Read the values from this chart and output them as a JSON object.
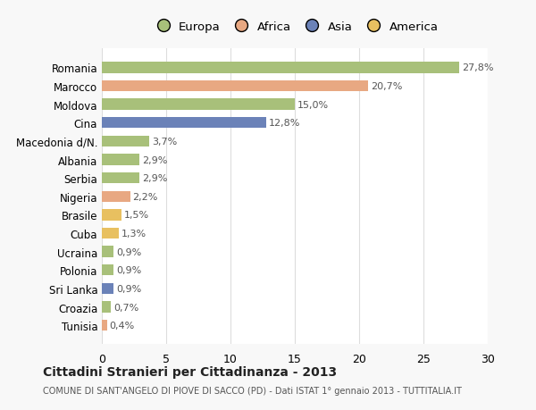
{
  "categories": [
    "Romania",
    "Marocco",
    "Moldova",
    "Cina",
    "Macedonia d/N.",
    "Albania",
    "Serbia",
    "Nigeria",
    "Brasile",
    "Cuba",
    "Ucraina",
    "Polonia",
    "Sri Lanka",
    "Croazia",
    "Tunisia"
  ],
  "values": [
    27.8,
    20.7,
    15.0,
    12.8,
    3.7,
    2.9,
    2.9,
    2.2,
    1.5,
    1.3,
    0.9,
    0.9,
    0.9,
    0.7,
    0.4
  ],
  "labels": [
    "27,8%",
    "20,7%",
    "15,0%",
    "12,8%",
    "3,7%",
    "2,9%",
    "2,9%",
    "2,2%",
    "1,5%",
    "1,3%",
    "0,9%",
    "0,9%",
    "0,9%",
    "0,7%",
    "0,4%"
  ],
  "colors": [
    "#a8c07a",
    "#e8a882",
    "#a8c07a",
    "#6b82b8",
    "#a8c07a",
    "#a8c07a",
    "#a8c07a",
    "#e8a882",
    "#e8c060",
    "#e8c060",
    "#a8c07a",
    "#a8c07a",
    "#6b82b8",
    "#a8c07a",
    "#e8a882"
  ],
  "legend_labels": [
    "Europa",
    "Africa",
    "Asia",
    "America"
  ],
  "legend_colors": [
    "#a8c07a",
    "#e8a882",
    "#6b82b8",
    "#e8c060"
  ],
  "title": "Cittadini Stranieri per Cittadinanza - 2013",
  "subtitle": "COMUNE DI SANT'ANGELO DI PIOVE DI SACCO (PD) - Dati ISTAT 1° gennaio 2013 - TUTTITALIA.IT",
  "xlim": [
    0,
    30
  ],
  "xticks": [
    0,
    5,
    10,
    15,
    20,
    25,
    30
  ],
  "bg_color": "#f8f8f8",
  "plot_bg_color": "#ffffff",
  "grid_color": "#dddddd"
}
